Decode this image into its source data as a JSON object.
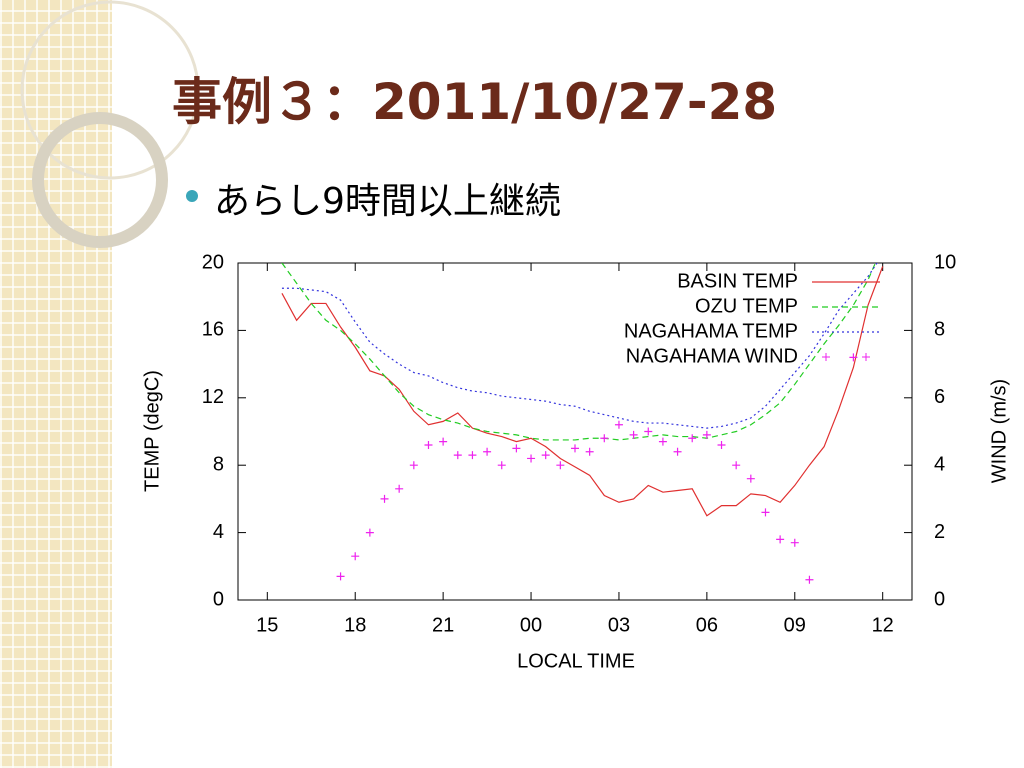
{
  "slide": {
    "title": "事例３：2011/10/27-28",
    "bullet": "あらし9時間以上継続"
  },
  "chart_data": {
    "type": "line",
    "xlabel": "LOCAL TIME",
    "ylabel": "TEMP (degC)",
    "y2label": "WIND (m/s)",
    "x": [
      15,
      15.5,
      16,
      16.5,
      17,
      17.5,
      18,
      18.5,
      19,
      19.5,
      20,
      20.5,
      21,
      21.5,
      22,
      22.5,
      23,
      23.5,
      24,
      24.5,
      25,
      25.5,
      26,
      26.5,
      27,
      27.5,
      28,
      28.5,
      29,
      29.5,
      30,
      30.5,
      31,
      31.5,
      32,
      32.5,
      33,
      33.5,
      34,
      34.5,
      35,
      35.5,
      36
    ],
    "series": [
      {
        "name": "BASIN TEMP",
        "color": "#e03030",
        "style": "solid",
        "values": [
          null,
          18.2,
          16.6,
          17.6,
          17.6,
          16.2,
          15.0,
          13.6,
          13.3,
          12.5,
          11.2,
          10.4,
          10.6,
          11.1,
          10.2,
          9.9,
          9.7,
          9.4,
          9.6,
          9.1,
          8.4,
          7.9,
          7.4,
          6.2,
          5.8,
          6.0,
          6.8,
          6.4,
          6.5,
          6.6,
          5.0,
          5.6,
          5.6,
          6.3,
          6.2,
          5.8,
          6.8,
          8.0,
          9.1,
          11.3,
          13.8,
          17.5,
          19.8
        ]
      },
      {
        "name": "OZU TEMP",
        "color": "#22cc22",
        "style": "dashed",
        "values": [
          null,
          20.0,
          18.8,
          17.6,
          16.6,
          16.0,
          15.2,
          14.3,
          13.3,
          12.3,
          11.5,
          11.0,
          10.7,
          10.5,
          10.2,
          10.0,
          9.9,
          9.8,
          9.6,
          9.5,
          9.5,
          9.5,
          9.6,
          9.6,
          9.5,
          9.6,
          9.7,
          9.8,
          9.7,
          9.7,
          9.6,
          9.8,
          10.0,
          10.4,
          11.0,
          11.7,
          12.8,
          14.0,
          15.2,
          16.3,
          17.5,
          19.0,
          21.0
        ]
      },
      {
        "name": "NAGAHAMA TEMP",
        "color": "#3333dd",
        "style": "dotted",
        "values": [
          null,
          18.5,
          18.5,
          18.4,
          18.3,
          17.8,
          16.5,
          15.3,
          14.6,
          14.0,
          13.5,
          13.3,
          12.9,
          12.6,
          12.4,
          12.3,
          12.1,
          12.0,
          11.9,
          11.8,
          11.6,
          11.5,
          11.2,
          11.0,
          10.8,
          10.6,
          10.5,
          10.5,
          10.4,
          10.3,
          10.2,
          10.3,
          10.5,
          10.8,
          11.5,
          12.5,
          13.5,
          14.5,
          15.8,
          17.2,
          18.2,
          19.2,
          20.5
        ]
      },
      {
        "name": "NAGAHAMA WIND",
        "color": "#ee22ee",
        "style": "points",
        "axis": "y2",
        "values": [
          null,
          null,
          null,
          null,
          null,
          0.7,
          1.3,
          2.0,
          3.0,
          3.3,
          4.0,
          4.6,
          4.7,
          4.3,
          4.3,
          4.4,
          4.0,
          4.5,
          4.2,
          4.3,
          4.0,
          4.5,
          4.4,
          4.8,
          5.2,
          4.9,
          5.0,
          4.7,
          4.4,
          4.8,
          4.9,
          4.6,
          4.0,
          3.6,
          2.6,
          1.8,
          1.7,
          0.6,
          null,
          null,
          7.2,
          null,
          null
        ]
      }
    ],
    "xlim": [
      14,
      37
    ],
    "xticks": [
      15,
      18,
      21,
      {
        "value": 24,
        "label": "00"
      },
      {
        "value": 27,
        "label": "03"
      },
      {
        "value": 30,
        "label": "06"
      },
      {
        "value": 33,
        "label": "09"
      },
      {
        "value": 36,
        "label": "12"
      }
    ],
    "ylim": [
      0,
      20
    ],
    "yticks": [
      0,
      4,
      8,
      12,
      16,
      20
    ],
    "y2lim": [
      0,
      10
    ],
    "y2ticks": [
      0,
      2,
      4,
      6,
      8,
      10
    ],
    "legend": "upper right"
  }
}
